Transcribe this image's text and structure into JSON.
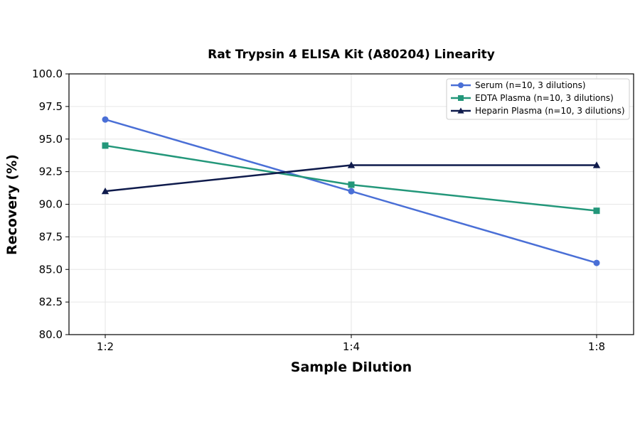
{
  "chart_data": {
    "type": "line",
    "title": "Rat Trypsin 4 ELISA Kit (A80204) Linearity",
    "xlabel": "Sample Dilution",
    "ylabel": "Recovery (%)",
    "categories": [
      "1:2",
      "1:4",
      "1:8"
    ],
    "ylim": [
      80.0,
      100.0
    ],
    "yticks": [
      "80.0",
      "82.5",
      "85.0",
      "87.5",
      "90.0",
      "92.5",
      "95.0",
      "97.5",
      "100.0"
    ],
    "grid": true,
    "legend_position": "top-right",
    "series": [
      {
        "name": "Serum (n=10, 3 dilutions)",
        "values": [
          96.5,
          91.0,
          85.5
        ],
        "color": "#4a6fd6",
        "marker": "circle"
      },
      {
        "name": "EDTA Plasma (n=10, 3 dilutions)",
        "values": [
          94.5,
          91.5,
          89.5
        ],
        "color": "#23977a",
        "marker": "square"
      },
      {
        "name": "Heparin Plasma (n=10, 3 dilutions)",
        "values": [
          91.0,
          93.0,
          93.0
        ],
        "color": "#0f1b4c",
        "marker": "triangle"
      }
    ]
  }
}
